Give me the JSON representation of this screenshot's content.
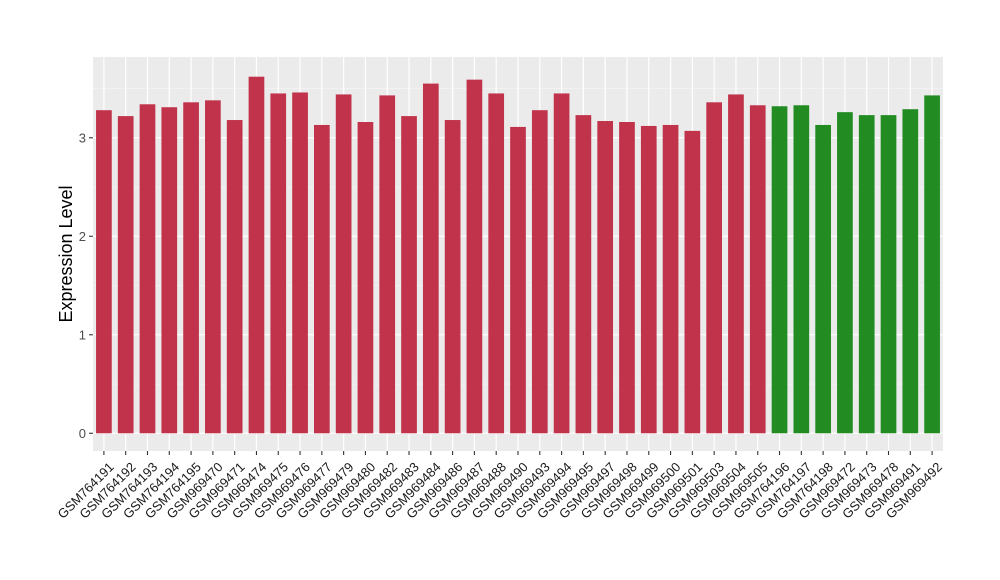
{
  "chart_data": {
    "type": "bar",
    "title": "",
    "xlabel": "",
    "ylabel": "Expression Level",
    "ylim": [
      -0.18,
      3.82
    ],
    "yticks": [
      0,
      1,
      2,
      3
    ],
    "grid": true,
    "background": "#ebebeb",
    "categories": [
      "GSM764191",
      "GSM764192",
      "GSM764193",
      "GSM764194",
      "GSM764195",
      "GSM969470",
      "GSM969471",
      "GSM969474",
      "GSM969475",
      "GSM969476",
      "GSM969477",
      "GSM969479",
      "GSM969480",
      "GSM969482",
      "GSM969483",
      "GSM969484",
      "GSM969486",
      "GSM969487",
      "GSM969488",
      "GSM969490",
      "GSM969493",
      "GSM969494",
      "GSM969495",
      "GSM969497",
      "GSM969498",
      "GSM969499",
      "GSM969500",
      "GSM969501",
      "GSM969503",
      "GSM969504",
      "GSM969505",
      "GSM764196",
      "GSM764197",
      "GSM764198",
      "GSM969472",
      "GSM969473",
      "GSM969478",
      "GSM969491",
      "GSM969492"
    ],
    "values": [
      3.28,
      3.22,
      3.34,
      3.31,
      3.36,
      3.38,
      3.18,
      3.62,
      3.45,
      3.46,
      3.13,
      3.44,
      3.16,
      3.43,
      3.22,
      3.55,
      3.18,
      3.59,
      3.45,
      3.11,
      3.28,
      3.45,
      3.23,
      3.17,
      3.16,
      3.12,
      3.13,
      3.07,
      3.36,
      3.44,
      3.33,
      3.32,
      3.33,
      3.13,
      3.26,
      3.23,
      3.23,
      3.29,
      3.43
    ],
    "bar_colors": [
      "#c0334a",
      "#c0334a",
      "#c0334a",
      "#c0334a",
      "#c0334a",
      "#c0334a",
      "#c0334a",
      "#c0334a",
      "#c0334a",
      "#c0334a",
      "#c0334a",
      "#c0334a",
      "#c0334a",
      "#c0334a",
      "#c0334a",
      "#c0334a",
      "#c0334a",
      "#c0334a",
      "#c0334a",
      "#c0334a",
      "#c0334a",
      "#c0334a",
      "#c0334a",
      "#c0334a",
      "#c0334a",
      "#c0334a",
      "#c0334a",
      "#c0334a",
      "#c0334a",
      "#c0334a",
      "#c0334a",
      "#228b22",
      "#228b22",
      "#228b22",
      "#228b22",
      "#228b22",
      "#228b22",
      "#228b22",
      "#228b22"
    ]
  }
}
